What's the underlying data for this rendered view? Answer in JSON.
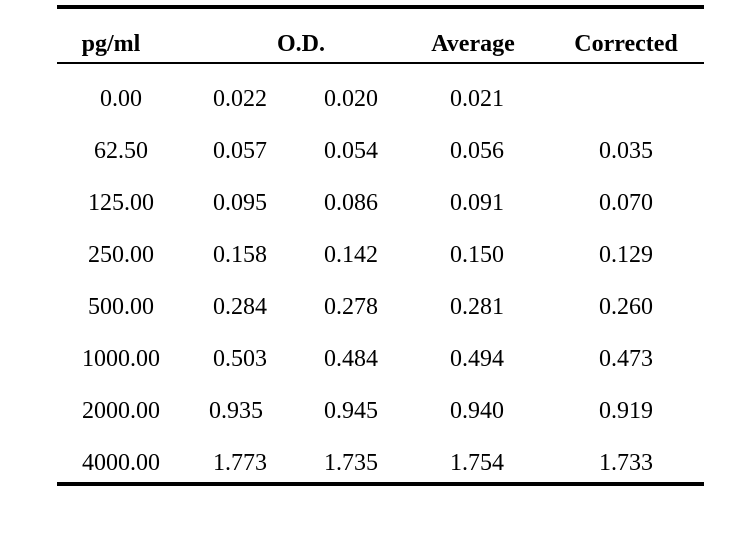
{
  "headers": {
    "pg": "pg/ml",
    "od": "O.D.",
    "average": "Average",
    "corrected": "Corrected"
  },
  "rows": [
    {
      "pg": "0.00",
      "od1": "0.022",
      "od2": "0.020",
      "average": "0.021",
      "corrected": ""
    },
    {
      "pg": "62.50",
      "od1": "0.057",
      "od2": "0.054",
      "average": "0.056",
      "corrected": "0.035"
    },
    {
      "pg": "125.00",
      "od1": "0.095",
      "od2": "0.086",
      "average": "0.091",
      "corrected": "0.070"
    },
    {
      "pg": "250.00",
      "od1": "0.158",
      "od2": "0.142",
      "average": "0.150",
      "corrected": "0.129"
    },
    {
      "pg": "500.00",
      "od1": "0.284",
      "od2": "0.278",
      "average": "0.281",
      "corrected": "0.260"
    },
    {
      "pg": "1000.00",
      "od1": "0.503",
      "od2": "0.484",
      "average": "0.494",
      "corrected": "0.473"
    },
    {
      "pg": "2000.00",
      "od1": "0.935",
      "od2": "0.945",
      "average": "0.940",
      "corrected": "0.919"
    },
    {
      "pg": "4000.00",
      "od1": "1.773",
      "od2": "1.735",
      "average": "1.754",
      "corrected": "1.733"
    }
  ]
}
